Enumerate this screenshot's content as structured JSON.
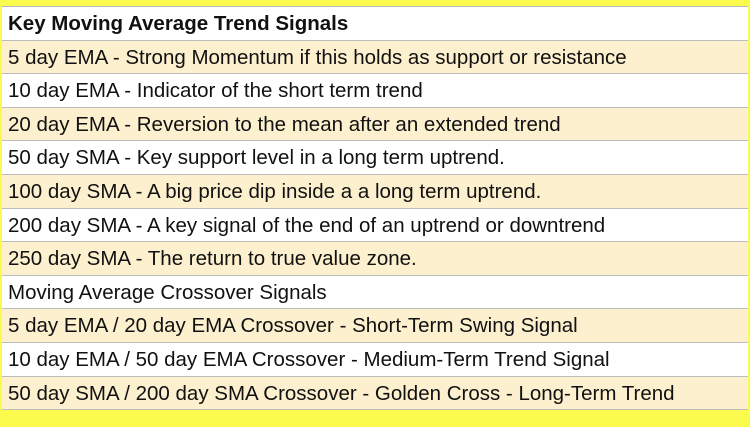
{
  "table": {
    "title": "Key Moving Average Trend Signals",
    "rows": [
      "5 day EMA - Strong Momentum if this holds as support or resistance",
      "10 day EMA - Indicator of the short term trend",
      "20 day EMA - Reversion to the mean after an extended trend",
      "50 day SMA - Key support level in a long term uptrend.",
      "100 day SMA - A big price dip inside a a long term uptrend.",
      "200 day SMA - A key signal of the end of an uptrend or downtrend",
      "250 day SMA - The return to true value zone.",
      "Moving Average Crossover Signals",
      "5 day EMA / 20 day EMA Crossover - Short-Term Swing Signal",
      "10 day EMA / 50 day EMA Crossover - Medium-Term Trend Signal",
      "50 day SMA / 200 day SMA Crossover - Golden Cross - Long-Term Trend"
    ]
  },
  "colors": {
    "frame": "#fbfb4e",
    "row_tint": "#fdf0cf",
    "row_plain": "#ffffff"
  }
}
